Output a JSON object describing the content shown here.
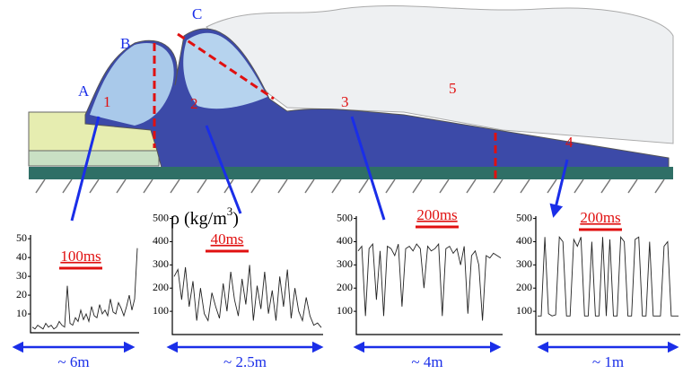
{
  "diagram": {
    "labels": [
      "A",
      "B",
      "C",
      "1",
      "2",
      "3",
      "4",
      "5"
    ],
    "density_label": [
      "ρ (kg/m",
      "3",
      ")"
    ]
  },
  "chart_data": [
    {
      "type": "line",
      "ylim": [
        0,
        52
      ],
      "yticks": [
        10,
        20,
        30,
        40,
        50
      ],
      "time_scale": "100ms",
      "length": "~ 6m",
      "values": [
        3,
        2,
        4,
        3,
        2,
        5,
        3,
        4,
        2,
        3,
        6,
        4,
        3,
        25,
        5,
        4,
        8,
        6,
        12,
        7,
        10,
        6,
        14,
        9,
        8,
        15,
        10,
        12,
        9,
        18,
        11,
        10,
        16,
        13,
        9,
        14,
        20,
        12,
        18,
        45
      ]
    },
    {
      "type": "line",
      "ylim": [
        0,
        510
      ],
      "yticks": [
        100,
        200,
        300,
        400,
        500
      ],
      "time_scale": "40ms",
      "length": "~ 2.5m",
      "values": [
        250,
        280,
        150,
        290,
        120,
        230,
        60,
        200,
        90,
        60,
        180,
        120,
        70,
        220,
        100,
        270,
        150,
        80,
        240,
        130,
        300,
        60,
        210,
        110,
        270,
        90,
        190,
        60,
        250,
        120,
        280,
        70,
        200,
        100,
        60,
        160,
        80,
        40,
        50,
        30
      ]
    },
    {
      "type": "line",
      "ylim": [
        0,
        510
      ],
      "yticks": [
        100,
        200,
        300,
        400,
        500
      ],
      "time_scale": "200ms",
      "length": "~ 4m",
      "values": [
        360,
        380,
        80,
        370,
        390,
        150,
        360,
        80,
        380,
        370,
        340,
        390,
        120,
        370,
        380,
        360,
        390,
        370,
        200,
        380,
        360,
        370,
        390,
        80,
        370,
        380,
        350,
        370,
        300,
        380,
        90,
        340,
        360,
        300,
        60,
        340,
        330,
        350,
        340,
        330
      ]
    },
    {
      "type": "line",
      "ylim": [
        0,
        510
      ],
      "yticks": [
        100,
        200,
        300,
        400,
        500
      ],
      "time_scale": "200ms",
      "length": "~ 1m",
      "values": [
        80,
        80,
        420,
        90,
        80,
        85,
        420,
        400,
        80,
        80,
        410,
        380,
        420,
        80,
        80,
        400,
        80,
        80,
        420,
        80,
        410,
        80,
        80,
        420,
        400,
        80,
        80,
        410,
        420,
        80,
        80,
        400,
        80,
        80,
        80,
        380,
        400,
        80,
        80,
        80
      ]
    }
  ]
}
